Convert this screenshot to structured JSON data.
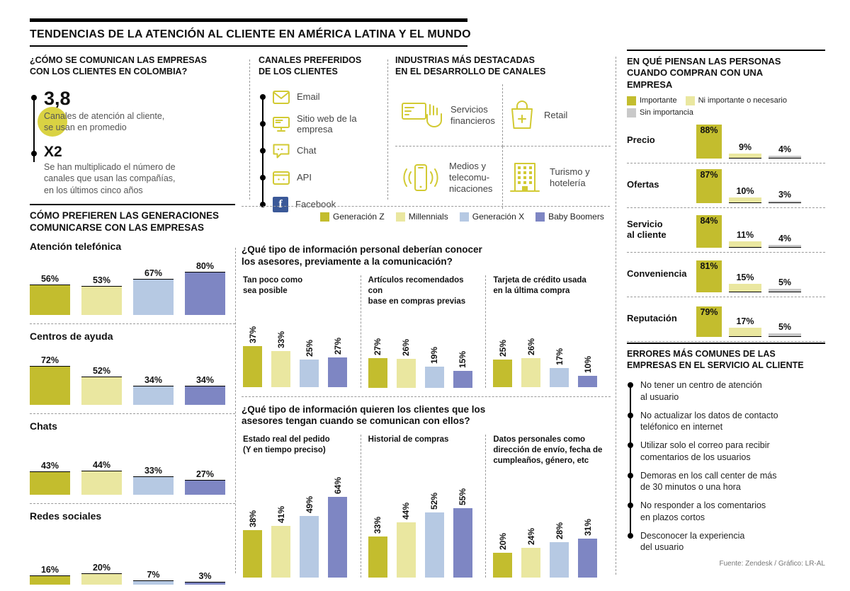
{
  "title": "TENDENCIAS DE LA ATENCIÓN AL CLIENTE EN AMÉRICA LATINA Y EL MUNDO",
  "colombia": {
    "title": "¿CÓMO SE COMUNICAN LAS EMPRESAS\nCON LOS CLIENTES EN COLOMBIA?",
    "items": [
      {
        "value": "3,8",
        "desc": "Canales de atención al cliente,\nse usan en promedio"
      },
      {
        "value": "X2",
        "desc": "Se han multiplicado el número de\ncanales que usan las compañías,\nen los últimos cinco años"
      }
    ]
  },
  "channels": {
    "title": "CANALES PREFERIDOS\nDE LOS CLIENTES",
    "items": [
      {
        "icon": "email-icon",
        "label": "Email"
      },
      {
        "icon": "website-icon",
        "label": "Sitio web de la\nempresa"
      },
      {
        "icon": "chat-icon",
        "label": "Chat"
      },
      {
        "icon": "api-icon",
        "label": "API"
      },
      {
        "icon": "facebook-icon",
        "label": "Facebook"
      }
    ]
  },
  "industries": {
    "title": "INDUSTRIAS MÁS DESTACADAS\nEN EL DESARROLLO DE CANALES",
    "items": [
      {
        "icon": "financial-services-icon",
        "label": "Servicios\nfinancieros"
      },
      {
        "icon": "retail-bag-icon",
        "label": "Retail"
      },
      {
        "icon": "telecom-phone-icon",
        "label": "Medios y\ntelecomu-\nnicaciones"
      },
      {
        "icon": "hotel-building-icon",
        "label": "Turismo y\nhotelería"
      }
    ]
  },
  "errors": {
    "title": "ERRORES MÁS COMUNES DE LAS\nEMPRESAS EN EL SERVICIO AL CLIENTE",
    "items": [
      "No tener un centro de atención\nal usuario",
      "No actualizar los datos de contacto\nteléfonico en internet",
      "Utilizar solo el correo para recibir\ncomentarios de los usuarios",
      "Demoras en los call center de más\nde 30 minutos o una hora",
      "No responder a los comentarios\nen plazos cortos",
      "Desconocer la experiencia\ndel usuario"
    ],
    "source": "Fuente: Zendesk / Gráfico: LR-AL"
  },
  "colors": {
    "series": [
      "#c3bd2e",
      "#eae7a0",
      "#b6c9e3",
      "#7e86c3"
    ],
    "gray": "#c9c9c9",
    "icon": "#d2ca33",
    "facebook": "#3b5998",
    "highlight": "#d9d243"
  },
  "chart_data": [
    {
      "type": "bar",
      "title": "CÓMO PREFIEREN LAS GENERACIONES\nCOMUNICARSE CON LAS EMPRESAS",
      "series": [
        "Generación Z",
        "Millennials",
        "Generación X",
        "Baby Boomers"
      ],
      "unit": "%",
      "ylim": [
        0,
        100
      ],
      "legend_position": "top-right",
      "groups": [
        {
          "label": "Atención telefónica",
          "values": [
            56,
            53,
            67,
            80
          ]
        },
        {
          "label": "Centros de ayuda",
          "values": [
            72,
            52,
            34,
            34
          ]
        },
        {
          "label": "Chats",
          "values": [
            43,
            44,
            33,
            27
          ]
        },
        {
          "label": "Redes sociales",
          "values": [
            16,
            20,
            7,
            3
          ]
        }
      ]
    },
    {
      "type": "bar",
      "title": "¿Qué tipo de información personal deberían conocer\nlos asesores, previamente a la comunicación?",
      "series": [
        "Generación Z",
        "Millennials",
        "Generación X",
        "Baby Boomers"
      ],
      "unit": "%",
      "ylim": [
        0,
        100
      ],
      "groups": [
        {
          "label": "Tan poco como\nsea posible",
          "values": [
            37,
            33,
            25,
            27
          ]
        },
        {
          "label": "Artículos recomendados con\nbase en compras previas",
          "values": [
            27,
            26,
            19,
            15
          ]
        },
        {
          "label": "Tarjeta de crédito usada\nen la última compra",
          "values": [
            25,
            26,
            17,
            10
          ]
        }
      ]
    },
    {
      "type": "bar",
      "title": "¿Qué tipo de información quieren los clientes que los\nasesores tengan cuando se comunican con ellos?",
      "series": [
        "Generación Z",
        "Millennials",
        "Generación X",
        "Baby Boomers"
      ],
      "unit": "%",
      "ylim": [
        0,
        100
      ],
      "groups": [
        {
          "label": "Estado real del pedido\n(Y en tiempo preciso)",
          "values": [
            38,
            41,
            49,
            64
          ]
        },
        {
          "label": "Historial de compras",
          "values": [
            33,
            44,
            52,
            55
          ]
        },
        {
          "label": "Datos personales como\ndirección de envío, fecha de\ncumpleaños, género, etc",
          "values": [
            20,
            24,
            28,
            31
          ]
        }
      ]
    },
    {
      "type": "bar",
      "title": "EN QUÉ PIENSAN LAS PERSONAS\nCUANDO COMPRAN CON UNA\nEMPRESA",
      "series": [
        "Importante",
        "Ni importante o necesario",
        "Sin importancia"
      ],
      "unit": "%",
      "ylim": [
        0,
        100
      ],
      "groups": [
        {
          "label": "Precio",
          "values": [
            88,
            9,
            4
          ]
        },
        {
          "label": "Ofertas",
          "values": [
            87,
            10,
            3
          ]
        },
        {
          "label": "Servicio\nal cliente",
          "values": [
            84,
            11,
            4
          ]
        },
        {
          "label": "Conveniencia",
          "values": [
            81,
            15,
            5
          ]
        },
        {
          "label": "Reputación",
          "values": [
            79,
            17,
            5
          ]
        }
      ]
    }
  ]
}
